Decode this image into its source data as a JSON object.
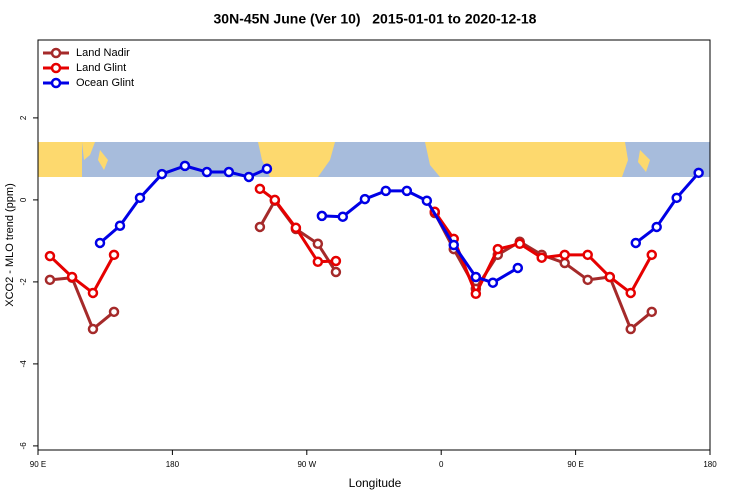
{
  "chart_data": {
    "type": "line",
    "title": "30N-45N June (Ver 10)   2015-01-01 to 2020-12-18",
    "xlabel": "Longitude",
    "ylabel": "XCO2 - MLO trend (ppm)",
    "xlim": [
      90,
      540
    ],
    "ylim": [
      -6.1,
      3.9
    ],
    "xticks": [
      {
        "value": 90,
        "label": "90 E"
      },
      180,
      {
        "value": 270,
        "label": "90 W"
      },
      {
        "value": 360,
        "label": "0"
      },
      {
        "value": 450,
        "label": "90 E"
      },
      {
        "value": 540,
        "label": "180"
      }
    ],
    "yticks": [
      -6,
      -4,
      -2,
      0,
      2
    ],
    "legend": "top-left",
    "series": [
      {
        "name": "Land Nadir",
        "color": "#a52a2a",
        "x": [
          98,
          112.8,
          126.8,
          140.9,
          null,
          238.6,
          248.6,
          262.7,
          277.4,
          289.5,
          null,
          355.7,
          368.4,
          383.2,
          397.9,
          412.6,
          427.3,
          442.7,
          458.1,
          472.9,
          486.9,
          501
        ],
        "values": [
          -1.95,
          -1.9,
          -3.15,
          -2.73,
          null,
          -0.66,
          -0.02,
          -0.71,
          -1.07,
          -1.76,
          null,
          -0.32,
          -1.2,
          -2.17,
          -1.34,
          -1.02,
          -1.34,
          -1.54,
          -1.95,
          -1.88,
          -3.15,
          -2.73
        ]
      },
      {
        "name": "Land Glint",
        "color": "#e60000",
        "x": [
          98,
          112.8,
          126.8,
          140.9,
          null,
          238.6,
          248.6,
          262.7,
          277.4,
          289.5,
          null,
          355.7,
          368.4,
          383.2,
          397.9,
          412.6,
          427.3,
          442.7,
          458.1,
          472.9,
          486.9,
          501
        ],
        "values": [
          -1.37,
          -1.88,
          -2.27,
          -1.34,
          null,
          0.27,
          0,
          -0.68,
          -1.51,
          -1.49,
          null,
          -0.29,
          -0.95,
          -2.29,
          -1.2,
          -1.07,
          -1.41,
          -1.34,
          -1.34,
          -1.88,
          -2.27,
          -1.34
        ]
      },
      {
        "name": "Ocean Glint",
        "color": "#0000e6",
        "x": [
          131.5,
          144.9,
          158.3,
          173,
          188.4,
          203.1,
          217.8,
          231.2,
          243.3,
          null,
          280.1,
          294.1,
          308.9,
          322.9,
          337,
          350.4,
          368.4,
          383.2,
          394.6,
          411.3,
          null,
          490.3,
          504.3,
          517.7,
          532.4
        ],
        "values": [
          -1.05,
          -0.63,
          0.05,
          0.63,
          0.83,
          0.68,
          0.68,
          0.56,
          0.76,
          null,
          -0.39,
          -0.41,
          0.02,
          0.22,
          0.22,
          -0.02,
          -1.1,
          -1.88,
          -2.02,
          -1.66,
          null,
          -1.05,
          -0.66,
          0.05,
          0.66
        ]
      }
    ]
  }
}
